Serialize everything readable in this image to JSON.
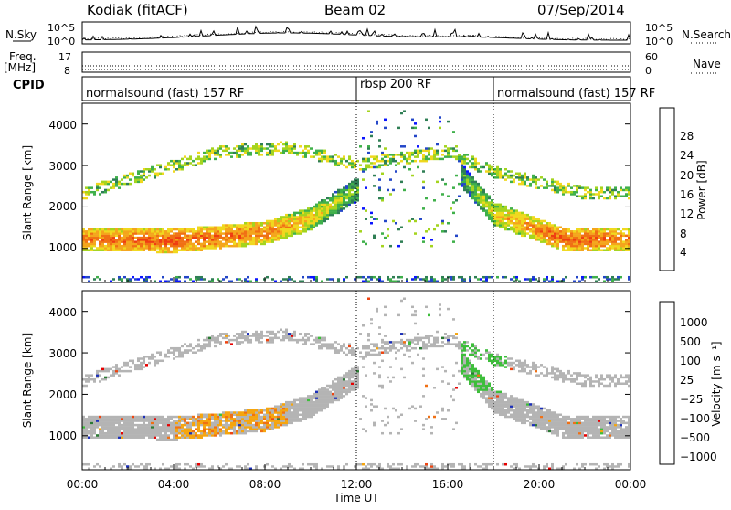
{
  "header": {
    "station": "Kodiak (fitACF)",
    "beam": "Beam 02",
    "date": "07/Sep/2014"
  },
  "nsky_panel": {
    "left_label": "N.Sky",
    "right_label": "N.Search",
    "left_ticks": [
      "10^5",
      "10^0"
    ],
    "right_ticks": [
      "10^5",
      "10^0"
    ]
  },
  "freq_panel": {
    "left_label_1": "Freq.",
    "left_label_2": "[MHz]",
    "right_label": "Nave",
    "left_ticks": [
      "17",
      "8"
    ],
    "right_ticks": [
      "60",
      "0"
    ]
  },
  "cpid_panel": {
    "label": "CPID",
    "segments": [
      {
        "text": "normalsound (fast) 157 RF",
        "start": 0,
        "end": 12
      },
      {
        "text": "rbsp 200 RF",
        "start": 12,
        "end": 18
      },
      {
        "text": "normalsound (fast) 157 RF",
        "start": 18,
        "end": 24
      }
    ]
  },
  "power_panel": {
    "ylabel": "Slant Range [km]",
    "yticks": [
      "1000",
      "2000",
      "3000",
      "4000"
    ],
    "colorbar_label": "Power [dB]",
    "colorbar_ticks": [
      "4",
      "8",
      "12",
      "16",
      "20",
      "24",
      "28"
    ],
    "colors": [
      "#0a14ff",
      "#2346c8",
      "#2f7f55",
      "#3fb04a",
      "#a4d41e",
      "#f0d81e",
      "#f4a51c",
      "#f07014",
      "#ef3d10",
      "#ff0000"
    ]
  },
  "velocity_panel": {
    "ylabel": "Slant Range [km]",
    "yticks": [
      "1000",
      "2000",
      "3000",
      "4000"
    ],
    "colorbar_label": "Velocity [m s⁻¹]",
    "colorbar_ticks": [
      "1000",
      "500",
      "100",
      "25",
      "−25",
      "−100",
      "−500",
      "−1000"
    ],
    "colors": [
      "#1c2fb8",
      "#2a7a33",
      "#3dbe3a",
      "#b4b4b4",
      "#f5a50f",
      "#f07014",
      "#ee4410",
      "#e60000"
    ]
  },
  "xaxis": {
    "label": "Time UT",
    "ticks": [
      "00:00",
      "04:00",
      "08:00",
      "12:00",
      "16:00",
      "20:00",
      "00:00"
    ]
  },
  "chart_data": {
    "type": "heatmap",
    "title": "Kodiak (fitACF)",
    "x_range_hours": [
      0,
      24
    ],
    "y_range_km": [
      180,
      4500
    ],
    "power_band_db": [
      [
        0,
        1200,
        22
      ],
      [
        4,
        1150,
        24
      ],
      [
        8,
        1350,
        22
      ],
      [
        10,
        1700,
        18
      ],
      [
        12,
        2400,
        12
      ],
      [
        16,
        3100,
        8
      ],
      [
        18,
        1800,
        18
      ],
      [
        21,
        1200,
        24
      ],
      [
        24,
        1200,
        22
      ]
    ],
    "upper_band_km": [
      [
        0,
        2300
      ],
      [
        3,
        2800
      ],
      [
        6,
        3300
      ],
      [
        9,
        3400
      ],
      [
        12,
        3000
      ],
      [
        16,
        3300
      ],
      [
        18,
        2800
      ],
      [
        22,
        2300
      ],
      [
        24,
        2300
      ]
    ]
  }
}
